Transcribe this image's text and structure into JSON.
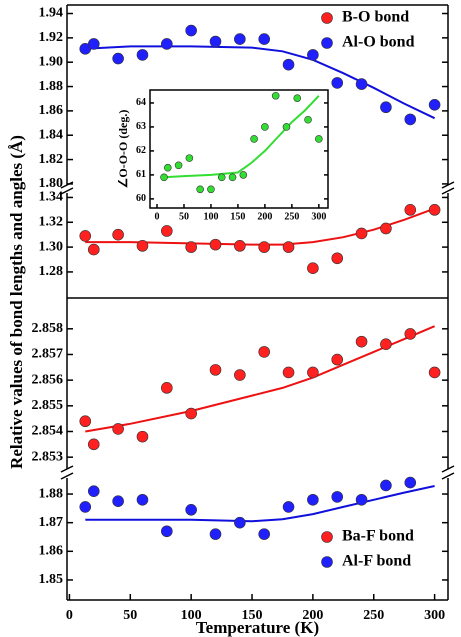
{
  "chart_data": [
    {
      "type": "scatter",
      "xlim": [
        -2,
        311
      ],
      "ylim": [
        1.795,
        1.947
      ],
      "ylabel": "Relative values of bond lengths and angles (Å)",
      "yticks": [
        {
          "value": 1.8,
          "label": "1.80"
        },
        1.82,
        1.84,
        1.86,
        1.88,
        {
          "value": 1.9,
          "label": "1.90"
        },
        1.92,
        1.94
      ],
      "legend": "upper right",
      "series": [
        {
          "name": "B-O bond",
          "color": "#ff2020",
          "x": [],
          "values": []
        },
        {
          "name": "Al-O bond",
          "color": "#2020ff",
          "x": [
            13,
            20,
            40,
            60,
            80,
            100,
            120,
            140,
            160,
            180,
            200,
            220,
            240,
            260,
            280,
            300
          ],
          "values": [
            1.911,
            1.915,
            1.903,
            1.906,
            1.915,
            1.926,
            1.917,
            1.919,
            1.919,
            1.898,
            1.906,
            1.883,
            1.882,
            1.863,
            1.853,
            1.865
          ]
        }
      ],
      "fits": [
        {
          "color": "#1010dd",
          "x": [
            13,
            50,
            100,
            150,
            175,
            200,
            225,
            250,
            275,
            300
          ],
          "values": [
            1.911,
            1.913,
            1.913,
            1.912,
            1.909,
            1.902,
            1.891,
            1.879,
            1.866,
            1.854
          ]
        }
      ]
    },
    {
      "type": "scatter",
      "xlim": [
        -2,
        311
      ],
      "ylim": [
        1.259,
        1.346
      ],
      "yticks": [
        1.28,
        {
          "value": 1.3,
          "label": "1.30"
        },
        1.32,
        1.34
      ],
      "series": [
        {
          "color": "#ff2020",
          "x": [
            13,
            20,
            40,
            60,
            80,
            100,
            120,
            140,
            160,
            180,
            200,
            220,
            240,
            260,
            280,
            300
          ],
          "values": [
            1.309,
            1.298,
            1.31,
            1.301,
            1.313,
            1.3,
            1.302,
            1.301,
            1.3,
            1.3,
            1.283,
            1.291,
            1.311,
            1.315,
            1.33,
            1.33
          ]
        }
      ],
      "fits": [
        {
          "color": "#ee1111",
          "x": [
            13,
            50,
            100,
            150,
            175,
            200,
            225,
            250,
            275,
            300
          ],
          "values": [
            1.304,
            1.304,
            1.303,
            1.302,
            1.302,
            1.304,
            1.308,
            1.314,
            1.322,
            1.331
          ]
        }
      ]
    },
    {
      "type": "scatter",
      "xlim": [
        -2,
        311
      ],
      "ylim": [
        2.8525,
        2.8592
      ],
      "yticks": [
        2.853,
        2.854,
        2.855,
        2.856,
        2.857,
        2.858
      ],
      "series": [
        {
          "color": "#ff2020",
          "x": [
            13,
            20,
            40,
            60,
            80,
            100,
            120,
            140,
            160,
            180,
            200,
            220,
            240,
            260,
            280,
            300
          ],
          "values": [
            2.8544,
            2.8535,
            2.8541,
            2.8538,
            2.8557,
            2.8547,
            2.8564,
            2.8562,
            2.8571,
            2.8563,
            2.8563,
            2.8568,
            2.8575,
            2.8574,
            2.8578,
            2.8563
          ]
        }
      ],
      "fits": [
        {
          "color": "#ee1111",
          "x": [
            13,
            50,
            100,
            150,
            175,
            200,
            225,
            250,
            275,
            300
          ],
          "values": [
            2.854,
            2.8543,
            2.8548,
            2.8554,
            2.8557,
            2.8561,
            2.8566,
            2.8571,
            2.8576,
            2.8581
          ]
        }
      ]
    },
    {
      "type": "scatter",
      "xlim": [
        -2,
        311
      ],
      "ylim": [
        1.843,
        1.8856
      ],
      "xlabel": "Temperature (K)",
      "xticks": [
        0,
        50,
        100,
        150,
        200,
        250,
        300
      ],
      "yticks": [
        1.85,
        1.86,
        1.87,
        1.88
      ],
      "legend": "lower right",
      "series": [
        {
          "name": "Ba-F bond",
          "color": "#ff2020",
          "x": [],
          "values": []
        },
        {
          "name": "Al-F bond",
          "color": "#2020ff",
          "x": [
            13,
            20,
            40,
            60,
            80,
            100,
            120,
            140,
            160,
            180,
            200,
            220,
            240,
            260,
            280
          ],
          "values": [
            1.8755,
            1.881,
            1.8775,
            1.878,
            1.867,
            1.8745,
            1.866,
            1.87,
            1.866,
            1.8755,
            1.878,
            1.879,
            1.878,
            1.883,
            1.884
          ]
        }
      ],
      "fits": [
        {
          "color": "#1010dd",
          "x": [
            13,
            50,
            100,
            150,
            175,
            200,
            225,
            250,
            275,
            300
          ],
          "values": [
            1.871,
            1.871,
            1.871,
            1.8705,
            1.8712,
            1.873,
            1.8755,
            1.878,
            1.8805,
            1.8828
          ]
        }
      ]
    },
    {
      "type": "scatter",
      "xlim": [
        -13,
        317
      ],
      "ylim": [
        59.62,
        64.54
      ],
      "ylabel": "∠O-O-O (deg.)",
      "xticks": [
        0,
        50,
        100,
        150,
        200,
        250,
        300
      ],
      "yticks": [
        60,
        61,
        62,
        63,
        64
      ],
      "series": [
        {
          "color": "#33dd33",
          "x": [
            13,
            20,
            40,
            60,
            80,
            100,
            120,
            140,
            160,
            180,
            200,
            220,
            240,
            260,
            280,
            300
          ],
          "values": [
            60.9,
            61.3,
            61.4,
            61.7,
            60.4,
            60.4,
            60.9,
            60.9,
            61.0,
            62.5,
            63.0,
            64.3,
            63.0,
            64.2,
            63.3,
            62.5
          ]
        }
      ],
      "fits": [
        {
          "color": "#33dd33",
          "x": [
            13,
            50,
            100,
            150,
            175,
            200,
            225,
            250,
            275,
            300
          ],
          "values": [
            60.9,
            60.95,
            61.0,
            61.1,
            61.5,
            62.0,
            62.6,
            63.2,
            63.7,
            64.3
          ]
        }
      ]
    }
  ]
}
